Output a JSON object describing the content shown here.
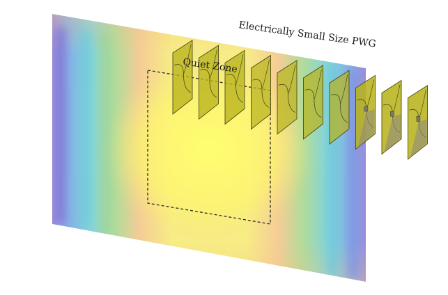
{
  "labels": {
    "quiet_zone": "Quiet Zone",
    "pwg": "Electrically Small Size PWG"
  },
  "colors": {
    "field_yellow": "#f5f074",
    "field_orange": "#f4c28a",
    "field_green": "#a8d48a",
    "field_cyan": "#67c7da",
    "field_purple": "#7f74d6",
    "element_fill": "#b8b41e",
    "element_edge": "#4b4a18",
    "quiet_zone_border": "#2a2a2a"
  },
  "elements": [
    {
      "name": "pwg-element"
    },
    {
      "name": "pwg-element"
    },
    {
      "name": "pwg-element"
    },
    {
      "name": "pwg-element"
    },
    {
      "name": "pwg-element"
    },
    {
      "name": "pwg-element"
    },
    {
      "name": "pwg-element"
    },
    {
      "name": "pwg-element"
    },
    {
      "name": "pwg-element"
    },
    {
      "name": "pwg-element"
    }
  ]
}
